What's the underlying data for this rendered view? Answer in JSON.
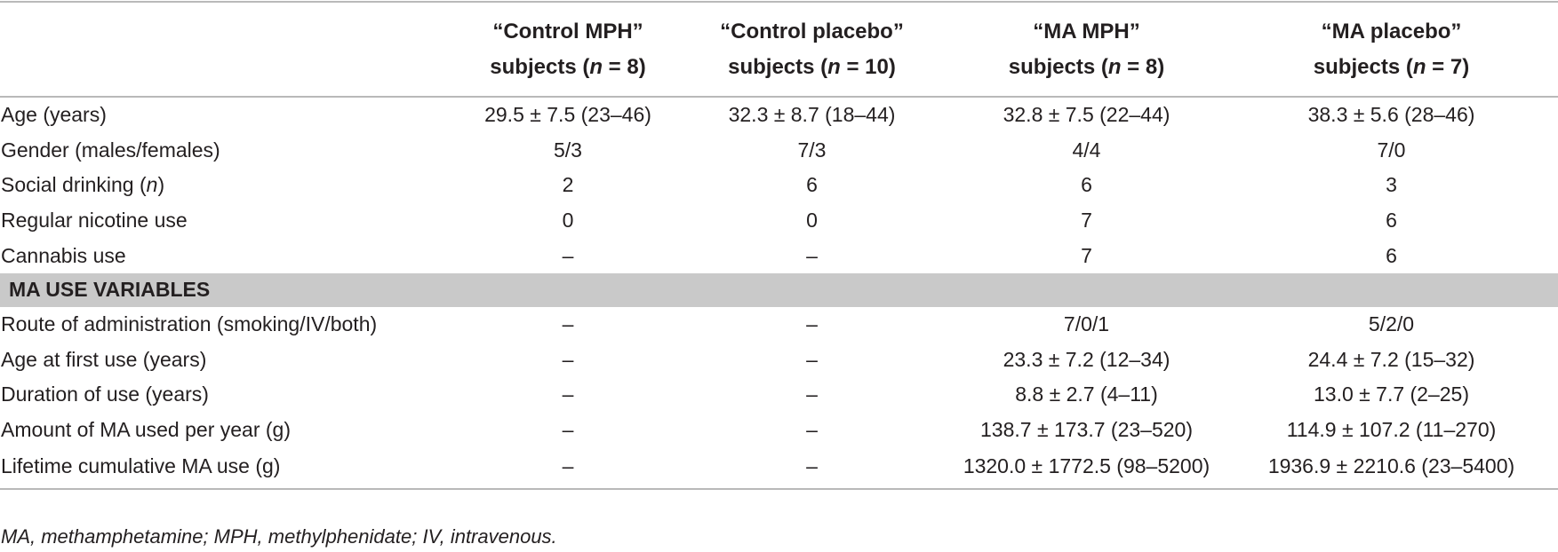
{
  "table": {
    "columns": [
      "",
      "“Control MPH” subjects (n = 8)",
      "“Control placebo” subjects (n = 10)",
      "“MA MPH” subjects (n = 8)",
      "“MA placebo” subjects (n = 7)"
    ],
    "headers": [
      {
        "line1": "“Control MPH”",
        "line2_pre": "subjects (",
        "n": "n",
        "line2_post": " = 8)"
      },
      {
        "line1": "“Control placebo”",
        "line2_pre": "subjects (",
        "n": "n",
        "line2_post": " = 10)"
      },
      {
        "line1": "“MA MPH”",
        "line2_pre": "subjects (",
        "n": "n",
        "line2_post": " = 8)"
      },
      {
        "line1": "“MA placebo”",
        "line2_pre": "subjects (",
        "n": "n",
        "line2_post": " = 7)"
      }
    ],
    "rows": [
      {
        "label": "Age (years)",
        "cells": [
          "29.5 ± 7.5 (23–46)",
          "32.3 ± 8.7 (18–44)",
          "32.8 ± 7.5 (22–44)",
          "38.3 ± 5.6 (28–46)"
        ]
      },
      {
        "label": "Gender (males/females)",
        "cells": [
          "5/3",
          "7/3",
          "4/4",
          "7/0"
        ]
      },
      {
        "label_pre": "Social drinking (",
        "label_italic": "n",
        "label_post": ")",
        "cells": [
          "2",
          "6",
          "6",
          "3"
        ]
      },
      {
        "label": "Regular nicotine use",
        "cells": [
          "0",
          "0",
          "7",
          "6"
        ]
      },
      {
        "label": "Cannabis use",
        "cells": [
          "–",
          "–",
          "7",
          "6"
        ]
      }
    ],
    "section": "MA USE VARIABLES",
    "ma_rows": [
      {
        "label": "Route of administration (smoking/IV/both)",
        "cells": [
          "–",
          "–",
          "7/0/1",
          "5/2/0"
        ]
      },
      {
        "label": "Age at first use (years)",
        "cells": [
          "–",
          "–",
          "23.3 ± 7.2 (12–34)",
          "24.4 ± 7.2 (15–32)"
        ]
      },
      {
        "label": "Duration of use (years)",
        "cells": [
          "–",
          "–",
          "8.8 ± 2.7 (4–11)",
          "13.0 ± 7.7 (2–25)"
        ]
      },
      {
        "label": "Amount of MA used per year (g)",
        "cells": [
          "–",
          "–",
          "138.7 ± 173.7 (23–520)",
          "114.9 ± 107.2 (11–270)"
        ]
      },
      {
        "label": "Lifetime cumulative MA use (g)",
        "cells": [
          "–",
          "–",
          "1320.0 ± 1772.5 (98–5200)",
          "1936.9 ± 2210.6 (23–5400)"
        ]
      }
    ]
  },
  "footnote": "MA, methamphetamine; MPH, methylphenidate; IV, intravenous."
}
